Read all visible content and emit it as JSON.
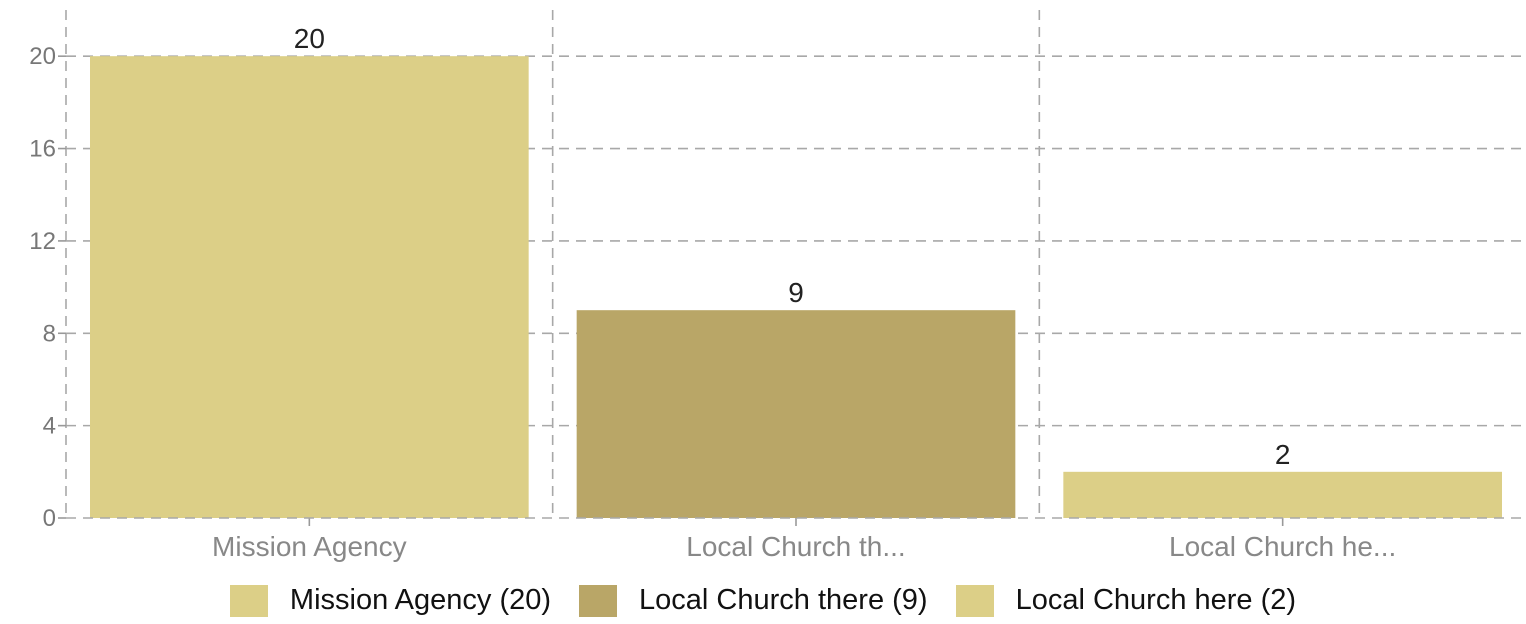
{
  "chart_data": {
    "type": "bar",
    "categories": [
      "Mission Agency",
      "Local Church th...",
      "Local Church he..."
    ],
    "values": [
      20,
      9,
      2
    ],
    "data_labels": [
      "20",
      "9",
      "2"
    ],
    "colors": [
      "#dccf87",
      "#b9a667",
      "#dccf87"
    ],
    "yticks": [
      "0",
      "4",
      "8",
      "12",
      "16",
      "20"
    ],
    "ylim": [
      0,
      22
    ],
    "grid": true,
    "legend_position": "bottom",
    "legend": [
      {
        "label": "Mission Agency (20)",
        "color": "#dccf87"
      },
      {
        "label": "Local Church there (9)",
        "color": "#b9a667"
      },
      {
        "label": "Local Church here (2)",
        "color": "#dccf87"
      }
    ]
  }
}
